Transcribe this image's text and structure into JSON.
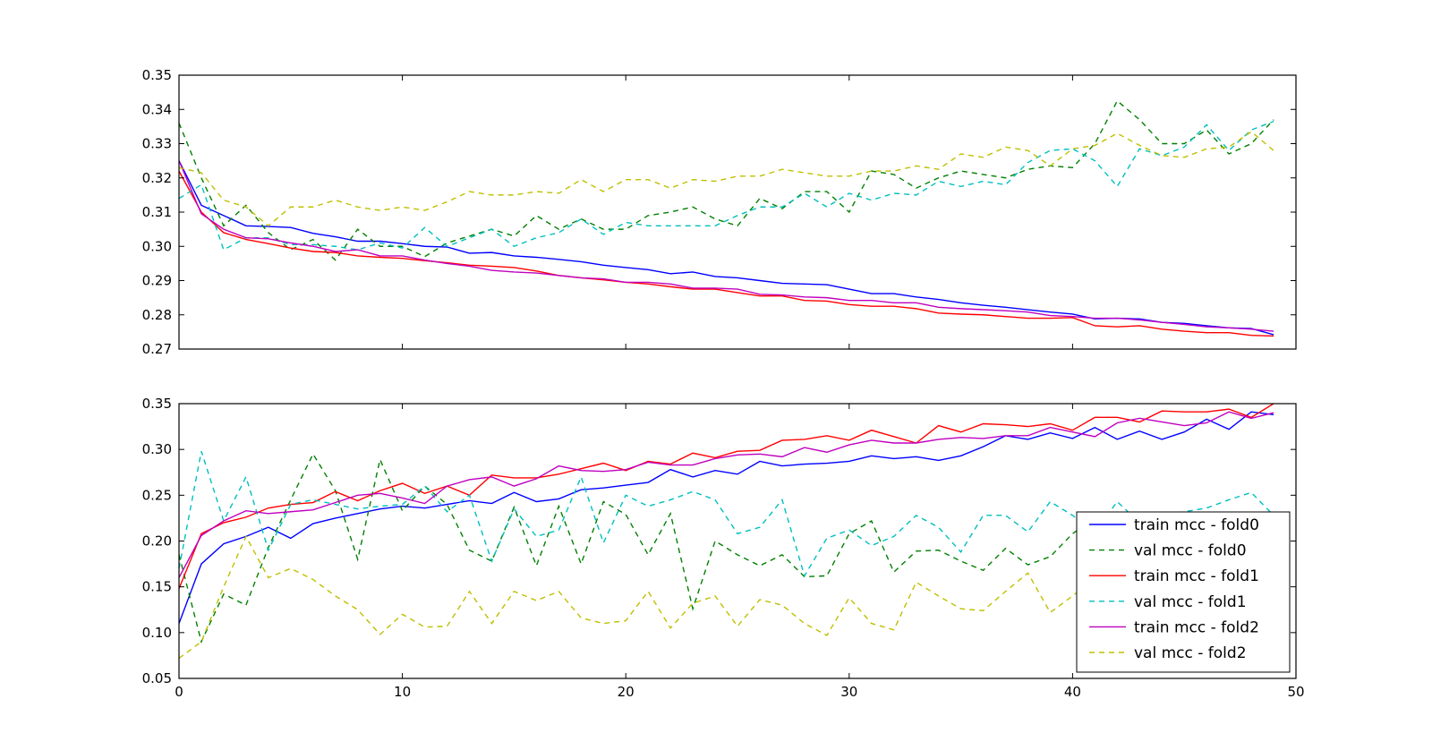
{
  "chart_data": [
    {
      "type": "line",
      "title": "",
      "xlabel": "",
      "ylabel": "",
      "xlim": [
        0,
        50
      ],
      "ylim": [
        0.27,
        0.35
      ],
      "grid": false,
      "y_ticks": [
        "0.27",
        "0.28",
        "0.29",
        "0.30",
        "0.31",
        "0.32",
        "0.33",
        "0.34",
        "0.35"
      ],
      "x_tick_labels_shown": false,
      "series": [
        {
          "color": "#0000ff",
          "dash": "solid",
          "values": [
            0.325,
            0.312,
            0.309,
            0.306,
            0.3058,
            0.3055,
            0.3038,
            0.3028,
            0.3015,
            0.3015,
            0.3008,
            0.3,
            0.2998,
            0.298,
            0.2982,
            0.2972,
            0.2968,
            0.2962,
            0.2955,
            0.2945,
            0.2938,
            0.2932,
            0.292,
            0.2925,
            0.2912,
            0.2908,
            0.29,
            0.2892,
            0.289,
            0.2888,
            0.2875,
            0.2862,
            0.2862,
            0.2852,
            0.2845,
            0.2835,
            0.2828,
            0.2822,
            0.2815,
            0.2808,
            0.2802,
            0.2788,
            0.279,
            0.2788,
            0.2778,
            0.2775,
            0.2768,
            0.2762,
            0.276,
            0.2742
          ]
        },
        {
          "color": "#008000",
          "dash": "dashed",
          "values": [
            0.336,
            0.32,
            0.306,
            0.312,
            0.304,
            0.299,
            0.302,
            0.296,
            0.305,
            0.3,
            0.3,
            0.297,
            0.301,
            0.303,
            0.305,
            0.303,
            0.309,
            0.305,
            0.308,
            0.305,
            0.305,
            0.309,
            0.31,
            0.3115,
            0.308,
            0.306,
            0.314,
            0.311,
            0.316,
            0.316,
            0.31,
            0.322,
            0.321,
            0.317,
            0.32,
            0.322,
            0.321,
            0.32,
            0.3225,
            0.3235,
            0.323,
            0.33,
            0.3425,
            0.337,
            0.33,
            0.33,
            0.334,
            0.327,
            0.33,
            0.337
          ]
        },
        {
          "color": "#ff0000",
          "dash": "solid",
          "values": [
            0.322,
            0.31,
            0.304,
            0.302,
            0.3008,
            0.2995,
            0.2985,
            0.2982,
            0.2972,
            0.2968,
            0.2965,
            0.2958,
            0.2952,
            0.2945,
            0.2942,
            0.2938,
            0.2928,
            0.2915,
            0.2908,
            0.2902,
            0.2895,
            0.289,
            0.2882,
            0.2875,
            0.2875,
            0.2865,
            0.2855,
            0.2855,
            0.2842,
            0.284,
            0.283,
            0.2825,
            0.2825,
            0.2818,
            0.2805,
            0.2802,
            0.28,
            0.2795,
            0.279,
            0.279,
            0.2792,
            0.2768,
            0.2765,
            0.2768,
            0.2758,
            0.2752,
            0.2748,
            0.2748,
            0.274,
            0.2738
          ]
        },
        {
          "color": "#00bfbf",
          "dash": "dashed",
          "values": [
            0.314,
            0.318,
            0.299,
            0.3025,
            0.3025,
            0.3005,
            0.3005,
            0.3,
            0.299,
            0.301,
            0.2995,
            0.3055,
            0.3,
            0.3025,
            0.305,
            0.3,
            0.3025,
            0.304,
            0.308,
            0.3035,
            0.307,
            0.306,
            0.306,
            0.306,
            0.306,
            0.309,
            0.3115,
            0.3115,
            0.3155,
            0.3115,
            0.3155,
            0.3135,
            0.3155,
            0.315,
            0.319,
            0.3175,
            0.319,
            0.318,
            0.3245,
            0.328,
            0.3285,
            0.325,
            0.3175,
            0.3285,
            0.3265,
            0.329,
            0.3355,
            0.328,
            0.334,
            0.3365
          ]
        },
        {
          "color": "#bf00bf",
          "dash": "solid",
          "values": [
            0.325,
            0.3095,
            0.305,
            0.3025,
            0.3022,
            0.301,
            0.3,
            0.2985,
            0.299,
            0.2972,
            0.2972,
            0.296,
            0.295,
            0.2942,
            0.293,
            0.2925,
            0.2922,
            0.2915,
            0.2908,
            0.2905,
            0.2895,
            0.2895,
            0.289,
            0.2878,
            0.2878,
            0.2875,
            0.286,
            0.2858,
            0.2852,
            0.285,
            0.2842,
            0.2842,
            0.2835,
            0.2835,
            0.2822,
            0.2818,
            0.2815,
            0.2812,
            0.2808,
            0.2798,
            0.2795,
            0.279,
            0.279,
            0.2785,
            0.2778,
            0.2772,
            0.2765,
            0.2762,
            0.2758,
            0.2752
          ]
        },
        {
          "color": "#bfbf00",
          "dash": "dashed",
          "values": [
            0.323,
            0.3215,
            0.3135,
            0.3115,
            0.306,
            0.3115,
            0.3115,
            0.3135,
            0.3115,
            0.3105,
            0.3115,
            0.3105,
            0.313,
            0.316,
            0.315,
            0.315,
            0.316,
            0.3155,
            0.3195,
            0.316,
            0.3195,
            0.3195,
            0.317,
            0.3195,
            0.319,
            0.3205,
            0.3205,
            0.3225,
            0.3215,
            0.3205,
            0.3205,
            0.322,
            0.322,
            0.3235,
            0.3225,
            0.327,
            0.326,
            0.329,
            0.328,
            0.3235,
            0.3285,
            0.3295,
            0.333,
            0.3295,
            0.3265,
            0.326,
            0.3285,
            0.329,
            0.3335,
            0.328
          ]
        }
      ]
    },
    {
      "type": "line",
      "title": "",
      "xlabel": "",
      "ylabel": "",
      "xlim": [
        0,
        50
      ],
      "ylim": [
        0.05,
        0.35
      ],
      "grid": false,
      "x_ticks": [
        "0",
        "10",
        "20",
        "30",
        "40",
        "50"
      ],
      "y_ticks": [
        "0.05",
        "0.10",
        "0.15",
        "0.20",
        "0.25",
        "0.30",
        "0.35"
      ],
      "legend_placement": "bottom-right",
      "series": [
        {
          "name": "train mcc - fold0",
          "color": "#0000ff",
          "dash": "solid",
          "values": [
            0.11,
            0.175,
            0.197,
            0.205,
            0.215,
            0.203,
            0.219,
            0.225,
            0.23,
            0.235,
            0.238,
            0.236,
            0.24,
            0.244,
            0.241,
            0.253,
            0.243,
            0.246,
            0.256,
            0.258,
            0.261,
            0.264,
            0.278,
            0.27,
            0.277,
            0.273,
            0.287,
            0.282,
            0.284,
            0.285,
            0.287,
            0.293,
            0.29,
            0.292,
            0.288,
            0.293,
            0.303,
            0.315,
            0.311,
            0.318,
            0.312,
            0.324,
            0.311,
            0.32,
            0.311,
            0.319,
            0.333,
            0.322,
            0.341,
            0.338
          ]
        },
        {
          "name": "val mcc - fold0",
          "color": "#008000",
          "dash": "dashed",
          "values": [
            0.185,
            0.09,
            0.142,
            0.13,
            0.193,
            0.245,
            0.295,
            0.255,
            0.18,
            0.289,
            0.233,
            0.26,
            0.24,
            0.19,
            0.178,
            0.237,
            0.173,
            0.238,
            0.175,
            0.243,
            0.229,
            0.185,
            0.23,
            0.126,
            0.2,
            0.185,
            0.173,
            0.185,
            0.161,
            0.162,
            0.208,
            0.222,
            0.166,
            0.189,
            0.19,
            0.178,
            0.168,
            0.192,
            0.174,
            0.183,
            0.208,
            0.225,
            0.225,
            0.205,
            0.215,
            0.222,
            0.23,
            0.2,
            0.215,
            0.22
          ]
        },
        {
          "name": "train mcc - fold1",
          "color": "#ff0000",
          "dash": "solid",
          "values": [
            0.148,
            0.208,
            0.22,
            0.226,
            0.236,
            0.24,
            0.242,
            0.254,
            0.244,
            0.255,
            0.263,
            0.252,
            0.26,
            0.25,
            0.272,
            0.269,
            0.269,
            0.273,
            0.279,
            0.285,
            0.277,
            0.287,
            0.284,
            0.296,
            0.291,
            0.298,
            0.299,
            0.31,
            0.311,
            0.315,
            0.31,
            0.321,
            0.314,
            0.307,
            0.326,
            0.319,
            0.328,
            0.327,
            0.325,
            0.328,
            0.321,
            0.335,
            0.335,
            0.33,
            0.342,
            0.341,
            0.341,
            0.344,
            0.335,
            0.35
          ]
        },
        {
          "name": "val mcc - fold1",
          "color": "#00bfbf",
          "dash": "dashed",
          "values": [
            0.17,
            0.298,
            0.222,
            0.27,
            0.19,
            0.24,
            0.245,
            0.24,
            0.235,
            0.238,
            0.24,
            0.26,
            0.232,
            0.25,
            0.178,
            0.235,
            0.205,
            0.212,
            0.27,
            0.198,
            0.25,
            0.238,
            0.245,
            0.254,
            0.245,
            0.208,
            0.215,
            0.245,
            0.162,
            0.203,
            0.212,
            0.195,
            0.205,
            0.228,
            0.215,
            0.188,
            0.228,
            0.228,
            0.21,
            0.243,
            0.228,
            0.21,
            0.243,
            0.22,
            0.228,
            0.232,
            0.236,
            0.245,
            0.253,
            0.228
          ]
        },
        {
          "name": "train mcc - fold2",
          "color": "#bf00bf",
          "dash": "solid",
          "values": [
            0.16,
            0.206,
            0.222,
            0.233,
            0.23,
            0.232,
            0.234,
            0.242,
            0.25,
            0.252,
            0.247,
            0.241,
            0.26,
            0.267,
            0.27,
            0.26,
            0.268,
            0.282,
            0.277,
            0.276,
            0.278,
            0.286,
            0.283,
            0.283,
            0.29,
            0.294,
            0.295,
            0.292,
            0.302,
            0.297,
            0.305,
            0.31,
            0.307,
            0.307,
            0.311,
            0.313,
            0.312,
            0.315,
            0.315,
            0.324,
            0.319,
            0.314,
            0.329,
            0.334,
            0.33,
            0.326,
            0.329,
            0.341,
            0.334,
            0.34
          ]
        },
        {
          "name": "val mcc - fold2",
          "color": "#bfbf00",
          "dash": "dashed",
          "values": [
            0.072,
            0.09,
            0.15,
            0.205,
            0.16,
            0.17,
            0.158,
            0.14,
            0.125,
            0.098,
            0.12,
            0.106,
            0.107,
            0.145,
            0.11,
            0.145,
            0.135,
            0.145,
            0.116,
            0.11,
            0.113,
            0.145,
            0.105,
            0.132,
            0.14,
            0.107,
            0.136,
            0.13,
            0.11,
            0.097,
            0.138,
            0.11,
            0.103,
            0.155,
            0.14,
            0.126,
            0.124,
            0.145,
            0.165,
            0.122,
            0.14,
            0.16,
            0.14,
            0.13,
            0.15,
            0.145,
            0.155,
            0.14,
            0.155,
            0.15
          ]
        }
      ]
    }
  ]
}
